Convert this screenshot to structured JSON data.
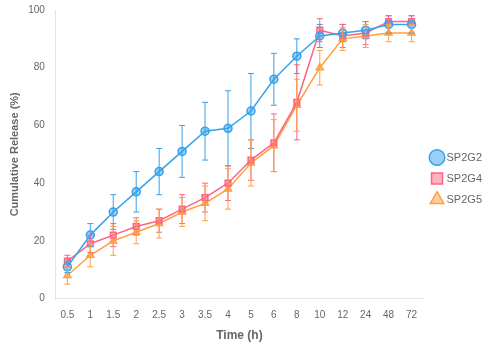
{
  "chart_data": {
    "type": "line",
    "xlabel": "Time (h)",
    "ylabel": "Cumulative Release (%)",
    "categories": [
      "0.5",
      "1",
      "1.5",
      "2",
      "2.5",
      "3",
      "3.5",
      "4",
      "5",
      "6",
      "8",
      "10",
      "12",
      "24",
      "48",
      "72"
    ],
    "series": [
      {
        "name": "SP2G2",
        "marker": "circle",
        "values": [
          11,
          22,
          30,
          37,
          44,
          51,
          58,
          59,
          65,
          76,
          84,
          91,
          92,
          93,
          95,
          95
        ],
        "errors": [
          2,
          4,
          6,
          7,
          8,
          9,
          10,
          13,
          13,
          9,
          6,
          4,
          3,
          3,
          3,
          3
        ]
      },
      {
        "name": "SP2G4",
        "marker": "square",
        "values": [
          13,
          19,
          22,
          25,
          27,
          31,
          35,
          40,
          48,
          54,
          68,
          93,
          91,
          92,
          96,
          96
        ],
        "errors": [
          2,
          3,
          4,
          3,
          4,
          5,
          5,
          6,
          7,
          10,
          13,
          4,
          4,
          4,
          2,
          2
        ]
      },
      {
        "name": "SP2G5",
        "marker": "triangle",
        "values": [
          8,
          15,
          20,
          23,
          26,
          30,
          33,
          38,
          47,
          53,
          67,
          80,
          90,
          91,
          92,
          92
        ],
        "errors": [
          3,
          4,
          5,
          4,
          5,
          5,
          6,
          7,
          8,
          9,
          9,
          6,
          4,
          4,
          3,
          3
        ]
      }
    ],
    "ylim": [
      0,
      100
    ],
    "yticks": [
      0,
      20,
      40,
      60,
      80,
      100
    ],
    "grid": false,
    "legend": "right"
  }
}
